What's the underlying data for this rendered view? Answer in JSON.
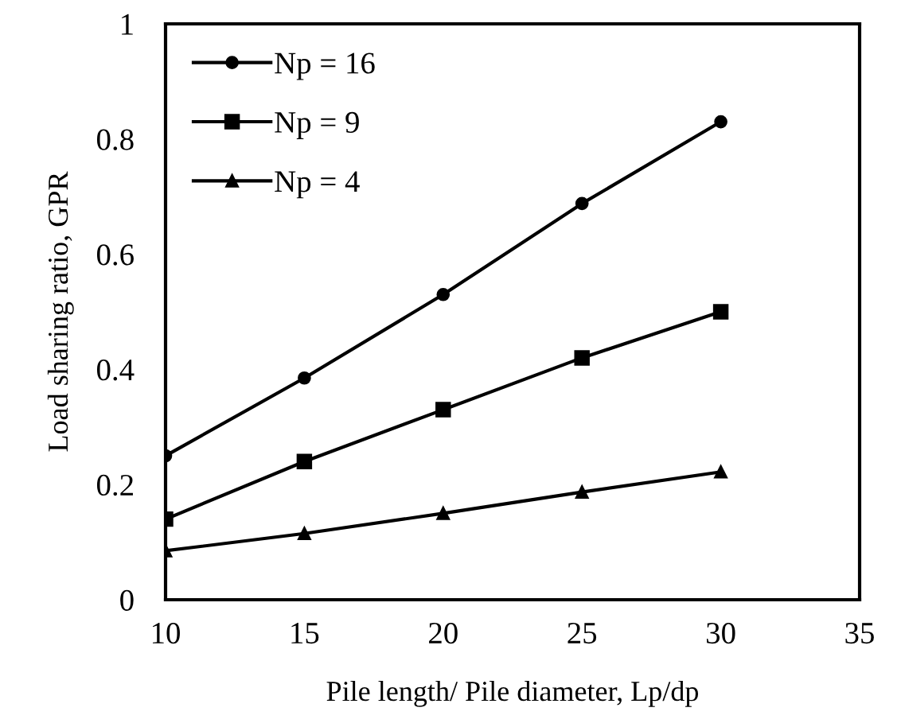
{
  "chart_data": {
    "type": "line",
    "xlabel": "Pile length/ Pile diameter, Lp/dp",
    "ylabel": "Load sharing ratio, GPR",
    "x": [
      10,
      15,
      20,
      25,
      30
    ],
    "series": [
      {
        "name": "Np = 16",
        "color": "#000000",
        "marker": "circle",
        "values": [
          0.25,
          0.385,
          0.53,
          0.688,
          0.83
        ]
      },
      {
        "name": "Np = 9",
        "color": "#000000",
        "marker": "square",
        "values": [
          0.14,
          0.24,
          0.33,
          0.42,
          0.5
        ]
      },
      {
        "name": "Np = 4",
        "color": "#000000",
        "marker": "triangle",
        "values": [
          0.085,
          0.115,
          0.15,
          0.187,
          0.222
        ]
      }
    ],
    "xlim": [
      10,
      35
    ],
    "xticks": [
      10,
      15,
      20,
      25,
      30,
      35
    ],
    "ylim": [
      0,
      1
    ],
    "yticks": [
      0,
      0.2,
      0.4,
      0.6,
      0.8,
      1
    ],
    "grid": false,
    "legend": "top left",
    "line_style": "solid"
  }
}
